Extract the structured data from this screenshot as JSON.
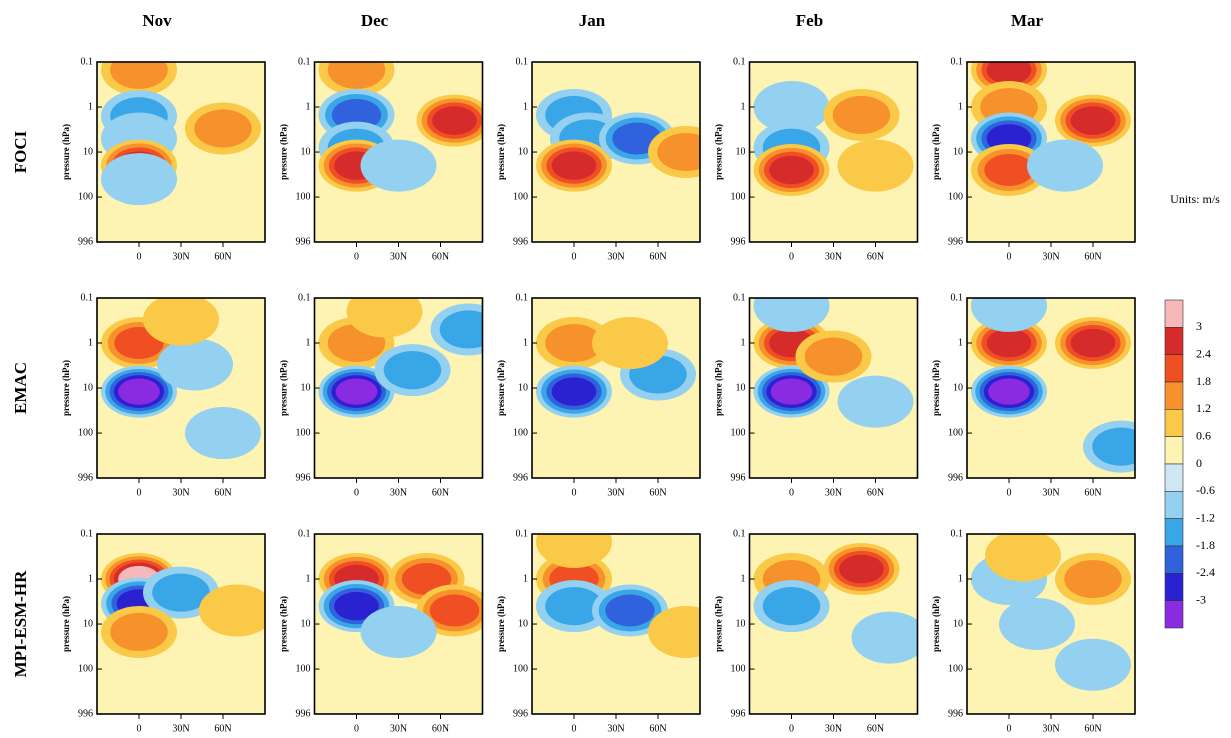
{
  "chart_data": {
    "type": "contour",
    "columns": [
      "Nov",
      "Dec",
      "Jan",
      "Feb",
      "Mar"
    ],
    "rows": [
      "FOCI",
      "EMAC",
      "MPI-ESM-HR"
    ],
    "ylabel": "pressure (hPa)",
    "log_y": true,
    "ylim": [
      996,
      0.1
    ],
    "yticks": [
      0.1,
      1,
      10,
      100,
      996
    ],
    "xlim": [
      -30,
      90
    ],
    "xticks": [
      0,
      {
        "value": 30,
        "label": "30N"
      },
      {
        "value": 60,
        "label": "60N"
      }
    ],
    "colorbar": {
      "title": "Units: m/s",
      "levels": [
        3,
        2.4,
        1.8,
        1.2,
        0.6,
        0,
        -0.6,
        -1.2,
        -1.8,
        -2.4,
        -3
      ],
      "colors": [
        "#f6b8b8",
        "#d62b2b",
        "#ef4f22",
        "#f7912b",
        "#fbc948",
        "#fdf3b2",
        "#cfe7f5",
        "#94d0f0",
        "#39a6e8",
        "#2f62dc",
        "#2a22d0",
        "#8a2be2"
      ]
    },
    "panels": [
      [
        [
          {
            "lat": 0,
            "p": 0.15,
            "value": 1.5
          },
          {
            "lat": 0,
            "p": 1.6,
            "value": -1.2
          },
          {
            "lat": 0,
            "p": 5,
            "value": -0.8
          },
          {
            "lat": 0,
            "p": 20,
            "value": 2.4
          },
          {
            "lat": 0,
            "p": 40,
            "value": -0.8
          },
          {
            "lat": 60,
            "p": 3,
            "value": 1.5
          }
        ],
        [
          {
            "lat": 0,
            "p": 0.15,
            "value": 1.2
          },
          {
            "lat": 0,
            "p": 1.5,
            "value": -1.8
          },
          {
            "lat": 0,
            "p": 8,
            "value": -1.2
          },
          {
            "lat": 0,
            "p": 20,
            "value": 2.4
          },
          {
            "lat": 70,
            "p": 2,
            "value": 2.4
          },
          {
            "lat": 30,
            "p": 20,
            "value": -0.8
          }
        ],
        [
          {
            "lat": 0,
            "p": 1.5,
            "value": -1.2
          },
          {
            "lat": 10,
            "p": 5,
            "value": -1.2
          },
          {
            "lat": 0,
            "p": 20,
            "value": 2.4
          },
          {
            "lat": 45,
            "p": 5,
            "value": -1.8
          },
          {
            "lat": 80,
            "p": 10,
            "value": 1.2
          }
        ],
        [
          {
            "lat": 0,
            "p": 1,
            "value": -0.6
          },
          {
            "lat": 0,
            "p": 8,
            "value": -1.2
          },
          {
            "lat": 0,
            "p": 25,
            "value": 2.4
          },
          {
            "lat": 50,
            "p": 1.5,
            "value": 1.2
          },
          {
            "lat": 60,
            "p": 20,
            "value": 0.6
          }
        ],
        [
          {
            "lat": 0,
            "p": 0.15,
            "value": 2.4
          },
          {
            "lat": 0,
            "p": 1,
            "value": 1.2
          },
          {
            "lat": 0,
            "p": 5,
            "value": -2.4
          },
          {
            "lat": 0,
            "p": 25,
            "value": 1.8
          },
          {
            "lat": 60,
            "p": 2,
            "value": 2.4
          },
          {
            "lat": 40,
            "p": 20,
            "value": -0.6
          }
        ]
      ],
      [
        [
          {
            "lat": 0,
            "p": 1,
            "value": 1.8
          },
          {
            "lat": 0,
            "p": 12,
            "value": -3
          },
          {
            "lat": 40,
            "p": 3,
            "value": -0.6
          },
          {
            "lat": 30,
            "p": 0.3,
            "value": 0.6
          },
          {
            "lat": 60,
            "p": 100,
            "value": -0.6
          }
        ],
        [
          {
            "lat": 0,
            "p": 1,
            "value": 1.2
          },
          {
            "lat": 0,
            "p": 12,
            "value": -3
          },
          {
            "lat": 40,
            "p": 4,
            "value": -1.2
          },
          {
            "lat": 80,
            "p": 0.5,
            "value": -1.2
          },
          {
            "lat": 20,
            "p": 0.2,
            "value": 0.6
          }
        ],
        [
          {
            "lat": 0,
            "p": 1,
            "value": 1.2
          },
          {
            "lat": 0,
            "p": 12,
            "value": -2.4
          },
          {
            "lat": 60,
            "p": 5,
            "value": -1.2
          },
          {
            "lat": 40,
            "p": 1,
            "value": 0.6
          }
        ],
        [
          {
            "lat": 0,
            "p": 1,
            "value": 2.4
          },
          {
            "lat": 0,
            "p": 12,
            "value": -3
          },
          {
            "lat": 30,
            "p": 2,
            "value": 1.2
          },
          {
            "lat": 60,
            "p": 20,
            "value": -0.6
          },
          {
            "lat": 0,
            "p": 0.15,
            "value": -0.6
          }
        ],
        [
          {
            "lat": 0,
            "p": 1,
            "value": 2.4
          },
          {
            "lat": 0,
            "p": 12,
            "value": -3
          },
          {
            "lat": 60,
            "p": 1,
            "value": 2.4
          },
          {
            "lat": 0,
            "p": 0.15,
            "value": -0.6
          },
          {
            "lat": 80,
            "p": 200,
            "value": -1.2
          }
        ]
      ],
      [
        [
          {
            "lat": 0,
            "p": 1,
            "value": 3
          },
          {
            "lat": 0,
            "p": 3.5,
            "value": -2.4
          },
          {
            "lat": 30,
            "p": 2,
            "value": -1.2
          },
          {
            "lat": 0,
            "p": 15,
            "value": 1.2
          },
          {
            "lat": 70,
            "p": 5,
            "value": 0.6
          }
        ],
        [
          {
            "lat": 0,
            "p": 1,
            "value": 2.4
          },
          {
            "lat": 0,
            "p": 4,
            "value": -2.4
          },
          {
            "lat": 50,
            "p": 1,
            "value": 1.8
          },
          {
            "lat": 70,
            "p": 5,
            "value": 1.8
          },
          {
            "lat": 30,
            "p": 15,
            "value": -0.6
          }
        ],
        [
          {
            "lat": 0,
            "p": 1,
            "value": 1.8
          },
          {
            "lat": 0,
            "p": 4,
            "value": -1.2
          },
          {
            "lat": 40,
            "p": 5,
            "value": -1.8
          },
          {
            "lat": 80,
            "p": 15,
            "value": 0.6
          },
          {
            "lat": 0,
            "p": 0.15,
            "value": 0.6
          }
        ],
        [
          {
            "lat": 0,
            "p": 1,
            "value": 1.2
          },
          {
            "lat": 0,
            "p": 4,
            "value": -1.2
          },
          {
            "lat": 50,
            "p": 0.6,
            "value": 2.4
          },
          {
            "lat": 70,
            "p": 20,
            "value": -0.6
          }
        ],
        [
          {
            "lat": 0,
            "p": 1,
            "value": -0.6
          },
          {
            "lat": 60,
            "p": 1,
            "value": 1.2
          },
          {
            "lat": 20,
            "p": 10,
            "value": -0.6
          },
          {
            "lat": 60,
            "p": 80,
            "value": -0.6
          },
          {
            "lat": 10,
            "p": 0.3,
            "value": 0.6
          }
        ]
      ]
    ]
  }
}
